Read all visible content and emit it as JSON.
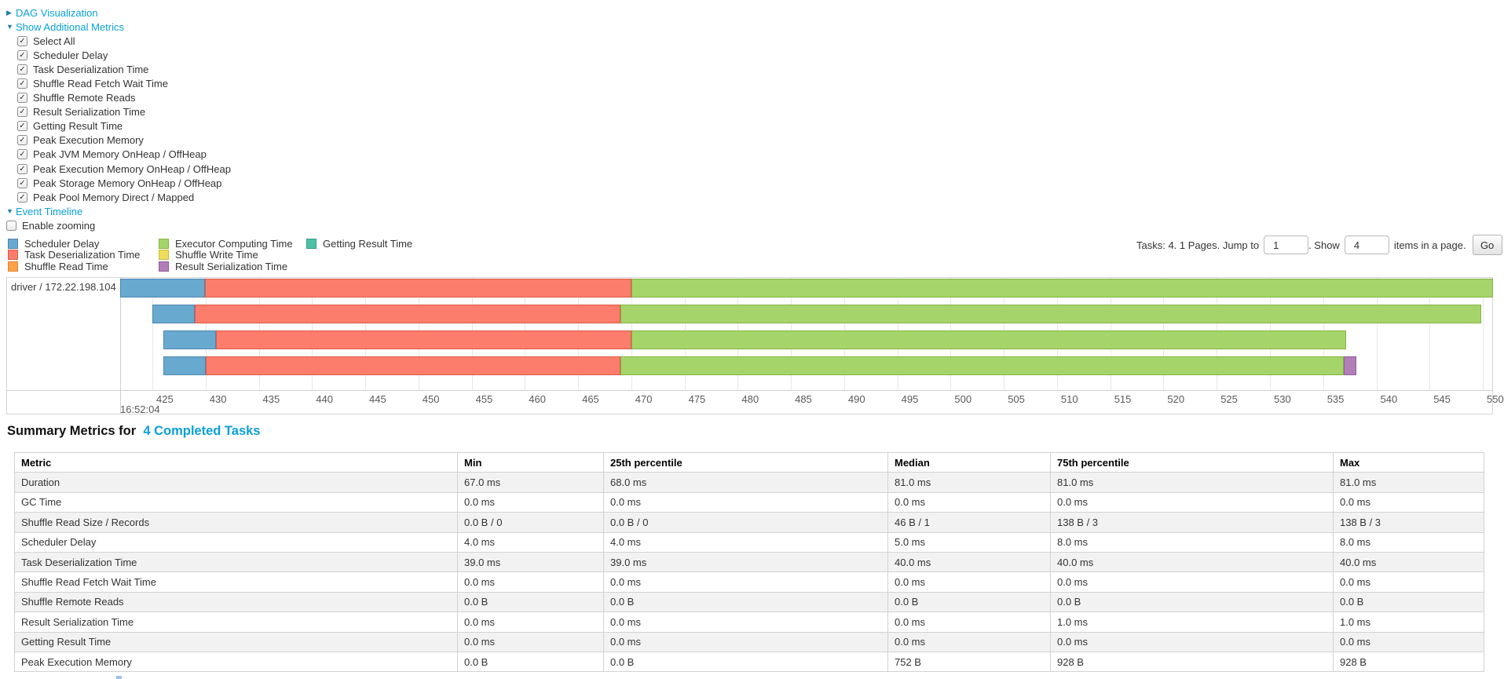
{
  "controls": {
    "dag": {
      "label": "DAG Visualization",
      "arrow": "▶"
    },
    "metrics_toggle": {
      "label": "Show Additional Metrics",
      "arrow": "▼"
    },
    "checkboxes": [
      {
        "label": "Select All",
        "checked": true
      },
      {
        "label": "Scheduler Delay",
        "checked": true
      },
      {
        "label": "Task Deserialization Time",
        "checked": true
      },
      {
        "label": "Shuffle Read Fetch Wait Time",
        "checked": true
      },
      {
        "label": "Shuffle Remote Reads",
        "checked": true
      },
      {
        "label": "Result Serialization Time",
        "checked": true
      },
      {
        "label": "Getting Result Time",
        "checked": true
      },
      {
        "label": "Peak Execution Memory",
        "checked": true
      },
      {
        "label": "Peak JVM Memory OnHeap / OffHeap",
        "checked": true
      },
      {
        "label": "Peak Execution Memory OnHeap / OffHeap",
        "checked": true
      },
      {
        "label": "Peak Storage Memory OnHeap / OffHeap",
        "checked": true
      },
      {
        "label": "Peak Pool Memory Direct / Mapped",
        "checked": true
      }
    ],
    "timeline_toggle": {
      "label": "Event Timeline",
      "arrow": "▼"
    },
    "enable_zooming": {
      "label": "Enable zooming",
      "checked": false
    }
  },
  "colors": {
    "scheduler_delay": {
      "label": "Scheduler Delay",
      "fill": "#68A9CF",
      "border": "#4E87AE"
    },
    "task_deserialization": {
      "label": "Task Deserialization Time",
      "fill": "#FC7D6C",
      "border": "#DE5A49"
    },
    "shuffle_read": {
      "label": "Shuffle Read Time",
      "fill": "#FCA247",
      "border": "#DD8637"
    },
    "executor_computing": {
      "label": "Executor Computing Time",
      "fill": "#A5D46A",
      "border": "#84B545"
    },
    "shuffle_write": {
      "label": "Shuffle Write Time",
      "fill": "#F0DE5B",
      "border": "#CDBA43"
    },
    "result_serialization": {
      "label": "Result Serialization Time",
      "fill": "#B27EB8",
      "border": "#925E98"
    },
    "getting_result": {
      "label": "Getting Result Time",
      "fill": "#4FC0A8",
      "border": "#3A9C87"
    }
  },
  "legend": {
    "columns": [
      [
        "scheduler_delay",
        "task_deserialization",
        "shuffle_read"
      ],
      [
        "executor_computing",
        "shuffle_write",
        "result_serialization"
      ],
      [
        "getting_result"
      ]
    ]
  },
  "pagination": {
    "prefix": "Tasks: 4. 1 Pages. Jump to",
    "jump_value": "1",
    "mid": ". Show",
    "show_value": "4",
    "suffix": "items in a page.",
    "go_label": "Go"
  },
  "timeline": {
    "row_label": "driver / 172.22.198.104",
    "axis": {
      "min": 425,
      "max": 550,
      "step": 5,
      "time_label": "16:52:04"
    },
    "bars": [
      {
        "segments": [
          {
            "key": "scheduler_delay",
            "from": 421.97,
            "to": 429.94
          },
          {
            "key": "task_deserialization",
            "from": 429.94,
            "to": 470.0
          },
          {
            "key": "executor_computing",
            "from": 470.0,
            "to": 551.0
          }
        ]
      },
      {
        "segments": [
          {
            "key": "scheduler_delay",
            "from": 425.0,
            "to": 428.98
          },
          {
            "key": "task_deserialization",
            "from": 428.98,
            "to": 468.98
          },
          {
            "key": "executor_computing",
            "from": 468.98,
            "to": 549.88
          }
        ]
      },
      {
        "segments": [
          {
            "key": "scheduler_delay",
            "from": 426.03,
            "to": 430.98
          },
          {
            "key": "task_deserialization",
            "from": 430.98,
            "to": 470.0
          },
          {
            "key": "executor_computing",
            "from": 470.0,
            "to": 537.15
          }
        ]
      },
      {
        "segments": [
          {
            "key": "scheduler_delay",
            "from": 426.03,
            "to": 429.98
          },
          {
            "key": "task_deserialization",
            "from": 429.98,
            "to": 468.98
          },
          {
            "key": "executor_computing",
            "from": 468.98,
            "to": 536.9
          },
          {
            "key": "result_serialization",
            "from": 536.9,
            "to": 538.1
          }
        ]
      }
    ]
  },
  "summary": {
    "title_prefix": "Summary Metrics for",
    "title_link": "4 Completed Tasks",
    "columns": [
      "Metric",
      "Min",
      "25th percentile",
      "Median",
      "75th percentile",
      "Max"
    ],
    "rows": [
      [
        "Duration",
        "67.0 ms",
        "68.0 ms",
        "81.0 ms",
        "81.0 ms",
        "81.0 ms"
      ],
      [
        "GC Time",
        "0.0 ms",
        "0.0 ms",
        "0.0 ms",
        "0.0 ms",
        "0.0 ms"
      ],
      [
        "Shuffle Read Size / Records",
        "0.0 B / 0",
        "0.0 B / 0",
        "46 B / 1",
        "138 B / 3",
        "138 B / 3"
      ],
      [
        "Scheduler Delay",
        "4.0 ms",
        "4.0 ms",
        "5.0 ms",
        "8.0 ms",
        "8.0 ms"
      ],
      [
        "Task Deserialization Time",
        "39.0 ms",
        "39.0 ms",
        "40.0 ms",
        "40.0 ms",
        "40.0 ms"
      ],
      [
        "Shuffle Read Fetch Wait Time",
        "0.0 ms",
        "0.0 ms",
        "0.0 ms",
        "0.0 ms",
        "0.0 ms"
      ],
      [
        "Shuffle Remote Reads",
        "0.0 B",
        "0.0 B",
        "0.0 B",
        "0.0 B",
        "0.0 B"
      ],
      [
        "Result Serialization Time",
        "0.0 ms",
        "0.0 ms",
        "0.0 ms",
        "1.0 ms",
        "1.0 ms"
      ],
      [
        "Getting Result Time",
        "0.0 ms",
        "0.0 ms",
        "0.0 ms",
        "0.0 ms",
        "0.0 ms"
      ],
      [
        "Peak Execution Memory",
        "0.0 B",
        "0.0 B",
        "752 B",
        "928 B",
        "928 B"
      ]
    ]
  }
}
